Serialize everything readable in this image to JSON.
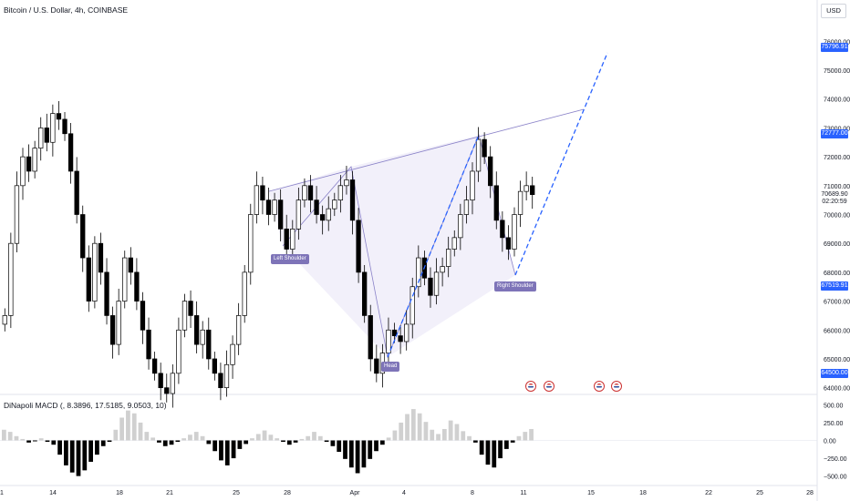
{
  "header": {
    "title": "Bitcoin / U.S. Dollar, 4h, COINBASE",
    "currency": "USD"
  },
  "indicator": {
    "label": "DiNapoli MACD (, 8.3896, 17.5185, 9.0503, 10)"
  },
  "price_axis": {
    "ticks": [
      "76000.00",
      "75000.00",
      "74000.00",
      "73000.00",
      "72000.00",
      "71000.00",
      "70000.00",
      "69000.00",
      "68000.00",
      "67000.00",
      "66000.00",
      "65000.00",
      "64000.00"
    ],
    "tags": [
      {
        "text": "75796.91",
        "color": "#2962ff",
        "price": 75796.91
      },
      {
        "text": "72777.00",
        "color": "#2962ff",
        "price": 72777
      },
      {
        "text": "70689.90",
        "color": "#ffffff",
        "price": 70689.9
      },
      {
        "text": "02:20:59",
        "color": "#ffffff",
        "price": 70420
      },
      {
        "text": "67519.91",
        "color": "#2962ff",
        "price": 67519.91
      },
      {
        "text": "64500.00",
        "color": "#2962ff",
        "price": 64500
      }
    ]
  },
  "macd_axis": {
    "ticks": [
      "500.00",
      "250.00",
      "0.00",
      "−250.00",
      "−500.00"
    ]
  },
  "time_axis": {
    "ticks": [
      "1",
      "14",
      "18",
      "21",
      "25",
      "28",
      "Apr",
      "4",
      "8",
      "11",
      "15",
      "18",
      "22",
      "25",
      "28"
    ]
  },
  "pattern": {
    "left_shoulder": "Left Shoulder",
    "head": "Head",
    "right_shoulder": "Right Shoulder"
  },
  "colors": {
    "up": "#ffffff",
    "down": "#000000",
    "pattern_fill": "#e8e4f5",
    "pattern_line": "#8a82c8",
    "projection": "#2962ff",
    "histogram_pos": "#d0d0d0",
    "histogram_neg": "#000000",
    "axis_text": "#131722"
  },
  "chart_data": {
    "type": "candlestick",
    "price_range": [
      63800,
      76800
    ],
    "macd_range": [
      -620,
      620
    ],
    "closes": [
      66500,
      69000,
      71000,
      72000,
      71500,
      72300,
      73000,
      72500,
      73500,
      73300,
      72800,
      71500,
      70000,
      68500,
      67000,
      69000,
      68000,
      66500,
      65500,
      67000,
      68500,
      68000,
      67000,
      66000,
      65000,
      64500,
      64000,
      63800,
      64500,
      66000,
      67000,
      66500,
      65500,
      66000,
      65000,
      64500,
      64000,
      64800,
      65500,
      66500,
      68000,
      70000,
      71000,
      70500,
      70000,
      70500,
      69500,
      68800,
      69500,
      70500,
      71000,
      70500,
      70000,
      69800,
      70200,
      70500,
      71000,
      71200,
      69800,
      68000,
      66500,
      65000,
      64500,
      65200,
      66000,
      65800,
      65600,
      66200,
      67500,
      68500,
      67800,
      67200,
      68000,
      68200,
      68800,
      69200,
      70000,
      70500,
      71500,
      72600,
      72000,
      71000,
      69800,
      69200,
      68800,
      70000,
      70800,
      71000,
      70690
    ],
    "macd_hist": [
      150,
      120,
      60,
      20,
      -30,
      -10,
      30,
      -20,
      -60,
      -200,
      -350,
      -450,
      -500,
      -420,
      -300,
      -200,
      -80,
      -20,
      150,
      320,
      420,
      380,
      250,
      120,
      40,
      -30,
      -80,
      -60,
      -20,
      30,
      80,
      120,
      60,
      -50,
      -150,
      -280,
      -350,
      -250,
      -120,
      -50,
      30,
      90,
      140,
      80,
      30,
      -20,
      -60,
      -30,
      20,
      60,
      120,
      60,
      -20,
      -80,
      -160,
      -260,
      -380,
      -460,
      -380,
      -260,
      -150,
      -60,
      40,
      140,
      250,
      370,
      440,
      380,
      260,
      150,
      90,
      160,
      280,
      230,
      130,
      60,
      -30,
      -200,
      -340,
      -380,
      -250,
      -120,
      -30,
      60,
      120,
      160
    ]
  }
}
